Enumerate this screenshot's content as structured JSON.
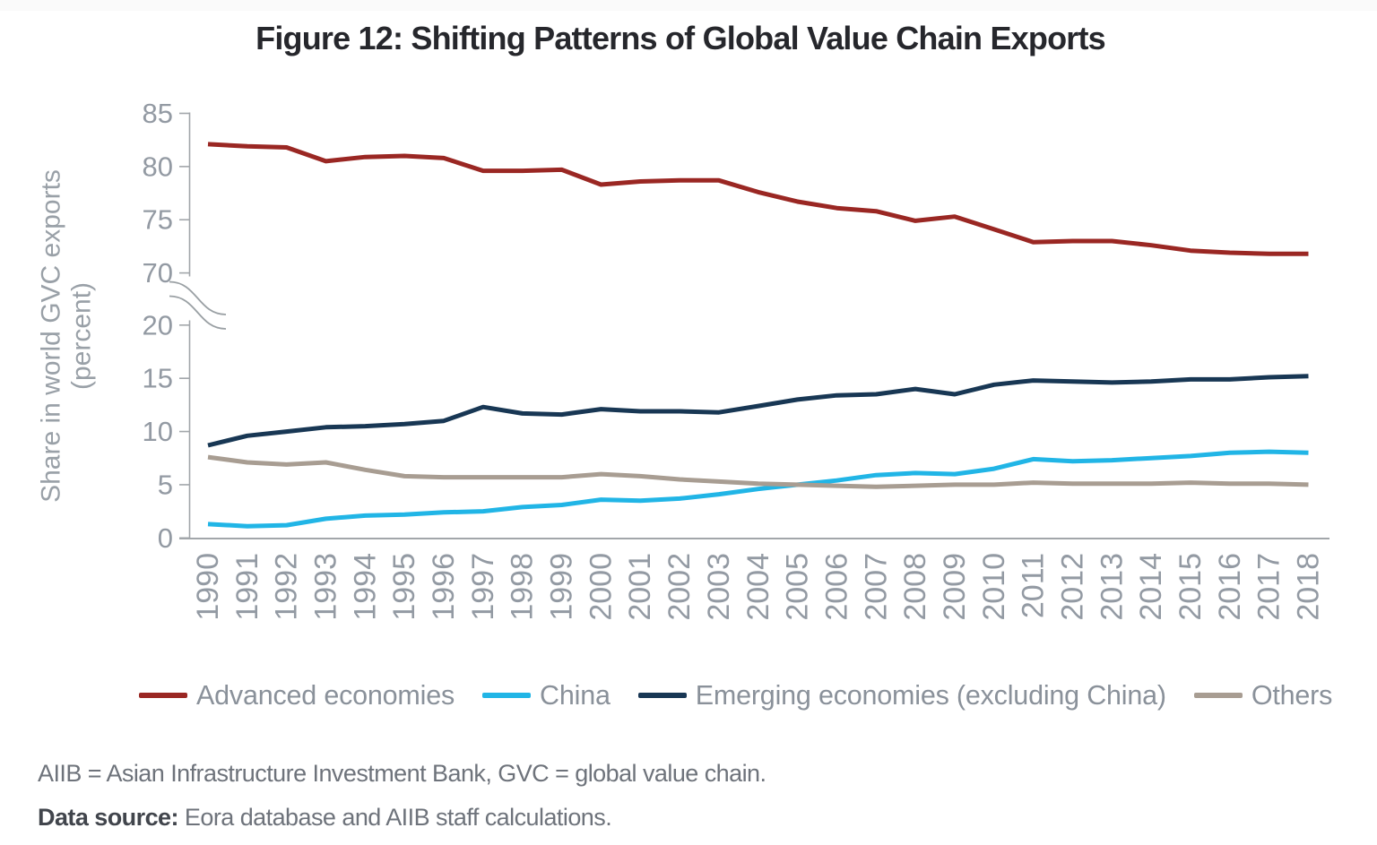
{
  "page": {
    "background_color": "#ffffff",
    "top_strip_color": "#fafafa"
  },
  "title": "Figure 12: Shifting Patterns of Global Value Chain Exports",
  "chart_data": {
    "type": "line",
    "title": "Figure 12: Shifting Patterns of Global Value Chain Exports",
    "xlabel": "",
    "ylabel": "Share in world GVC exports (percent)",
    "ylabel_line1": "Share in world GVC exports",
    "ylabel_line2": "(percent)",
    "grid": false,
    "legend_position": "bottom",
    "y_axis_break": true,
    "lower_axis_range": [
      0,
      20
    ],
    "upper_axis_range": [
      70,
      85
    ],
    "lower_ticks": [
      0,
      5,
      10,
      15,
      20
    ],
    "upper_ticks": [
      70,
      75,
      80,
      85
    ],
    "x": [
      1990,
      1991,
      1992,
      1993,
      1994,
      1995,
      1996,
      1997,
      1998,
      1999,
      2000,
      2001,
      2002,
      2003,
      2004,
      2005,
      2006,
      2007,
      2008,
      2009,
      2010,
      2011,
      2012,
      2013,
      2014,
      2015,
      2016,
      2017,
      2018
    ],
    "series": [
      {
        "name": "Advanced economies",
        "color": "#9a2723",
        "axis_segment": "upper",
        "values": [
          82.1,
          81.9,
          81.8,
          80.5,
          80.9,
          81.0,
          80.8,
          79.6,
          79.6,
          79.7,
          78.3,
          78.6,
          78.7,
          78.7,
          77.6,
          76.7,
          76.1,
          75.8,
          74.9,
          75.3,
          74.1,
          72.9,
          73.0,
          73.0,
          72.6,
          72.1,
          71.9,
          71.8,
          71.8
        ]
      },
      {
        "name": "China",
        "color": "#21b5e6",
        "axis_segment": "lower",
        "values": [
          1.3,
          1.1,
          1.2,
          1.8,
          2.1,
          2.2,
          2.4,
          2.5,
          2.9,
          3.1,
          3.6,
          3.5,
          3.7,
          4.1,
          4.6,
          5.0,
          5.4,
          5.9,
          6.1,
          6.0,
          6.5,
          7.4,
          7.2,
          7.3,
          7.5,
          7.7,
          8.0,
          8.1,
          8.0
        ]
      },
      {
        "name": "Emerging economies (excluding China)",
        "color": "#183754",
        "axis_segment": "lower",
        "values": [
          8.7,
          9.6,
          10.0,
          10.4,
          10.5,
          10.7,
          11.0,
          12.3,
          11.7,
          11.6,
          12.1,
          11.9,
          11.9,
          11.8,
          12.4,
          13.0,
          13.4,
          13.5,
          14.0,
          13.5,
          14.4,
          14.8,
          14.7,
          14.6,
          14.7,
          14.9,
          14.9,
          15.1,
          15.2
        ]
      },
      {
        "name": "Others",
        "color": "#a89d92",
        "axis_segment": "lower",
        "values": [
          7.6,
          7.1,
          6.9,
          7.1,
          6.4,
          5.8,
          5.7,
          5.7,
          5.7,
          5.7,
          6.0,
          5.8,
          5.5,
          5.3,
          5.1,
          5.0,
          4.9,
          4.8,
          4.9,
          5.0,
          5.0,
          5.2,
          5.1,
          5.1,
          5.1,
          5.2,
          5.1,
          5.1,
          5.0
        ]
      }
    ]
  },
  "legend": {
    "items": [
      {
        "label": "Advanced economies",
        "color": "#9a2723"
      },
      {
        "label": "China",
        "color": "#21b5e6"
      },
      {
        "label": "Emerging economies (excluding China)",
        "color": "#183754"
      },
      {
        "label": "Others",
        "color": "#a89d92"
      }
    ]
  },
  "notes": {
    "line1": "AIIB = Asian Infrastructure Investment Bank, GVC = global value chain.",
    "line2_bold": "Data source:",
    "line2_rest": " Eora database and AIIB staff calculations."
  }
}
